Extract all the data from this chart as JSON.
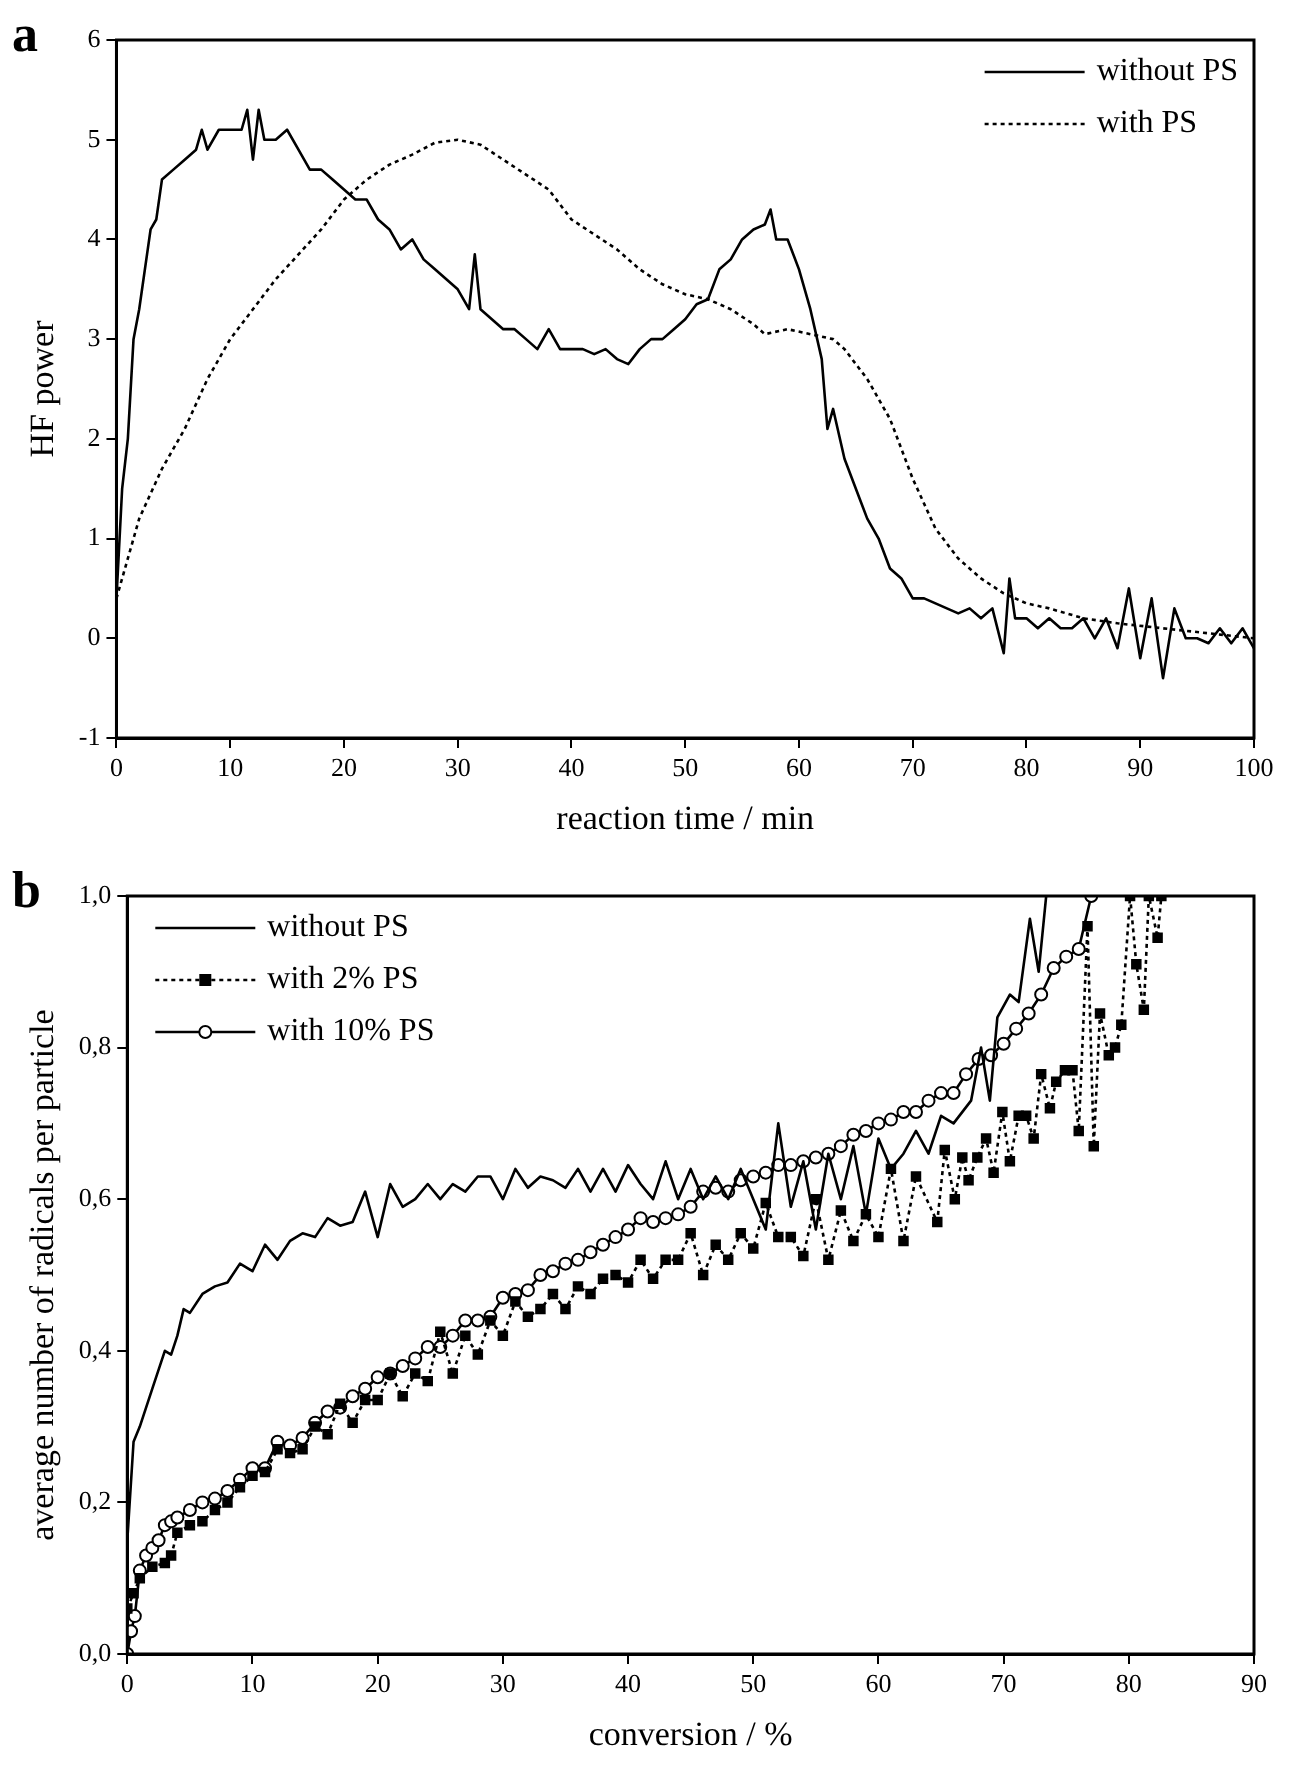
{
  "chart_data": [
    {
      "type": "line",
      "title": "a",
      "xlabel": "reaction time / min",
      "ylabel": "HF power",
      "xlim": [
        0,
        100
      ],
      "xticks": [
        0,
        10,
        20,
        30,
        40,
        50,
        60,
        70,
        80,
        90,
        100
      ],
      "ylim": [
        -1,
        6
      ],
      "yticks": [
        -1,
        0,
        1,
        2,
        3,
        4,
        5,
        6
      ],
      "legend": "top right",
      "marker": "none",
      "series": [
        {
          "name": "without PS",
          "color": "#000000",
          "line_style": "solid",
          "x": [
            0,
            0.5,
            1,
            1.5,
            2,
            3,
            3.5,
            4,
            5,
            6,
            7,
            7.5,
            8,
            9,
            10,
            11,
            11.5,
            12,
            12.5,
            13,
            14,
            15,
            16,
            17,
            18,
            19,
            20,
            21,
            22,
            23,
            24,
            25,
            26,
            27,
            28,
            29,
            30,
            31,
            31.5,
            32,
            33,
            34,
            35,
            36,
            37,
            38,
            39,
            40,
            41,
            42,
            43,
            44,
            45,
            46,
            47,
            48,
            49,
            50,
            51,
            52,
            53,
            54,
            55,
            56,
            57,
            57.5,
            58,
            59,
            60,
            61,
            62,
            62.5,
            63,
            64,
            65,
            66,
            67,
            68,
            69,
            70,
            71,
            72,
            73,
            74,
            75,
            76,
            77,
            78,
            78.5,
            79,
            80,
            81,
            82,
            83,
            84,
            85,
            86,
            87,
            88,
            89,
            90,
            91,
            92,
            93,
            94,
            95,
            96,
            97,
            98,
            99,
            100
          ],
          "values": [
            0.4,
            1.5,
            2.0,
            3.0,
            3.3,
            4.1,
            4.2,
            4.6,
            4.7,
            4.8,
            4.9,
            5.1,
            4.9,
            5.1,
            5.1,
            5.1,
            5.3,
            4.8,
            5.3,
            5.0,
            5.0,
            5.1,
            4.9,
            4.7,
            4.7,
            4.6,
            4.5,
            4.4,
            4.4,
            4.2,
            4.1,
            3.9,
            4.0,
            3.8,
            3.7,
            3.6,
            3.5,
            3.3,
            3.85,
            3.3,
            3.2,
            3.1,
            3.1,
            3.0,
            2.9,
            3.1,
            2.9,
            2.9,
            2.9,
            2.85,
            2.9,
            2.8,
            2.75,
            2.9,
            3.0,
            3.0,
            3.1,
            3.2,
            3.35,
            3.4,
            3.7,
            3.8,
            4.0,
            4.1,
            4.15,
            4.3,
            4.0,
            4.0,
            3.7,
            3.3,
            2.8,
            2.1,
            2.3,
            1.8,
            1.5,
            1.2,
            1.0,
            0.7,
            0.6,
            0.4,
            0.4,
            0.35,
            0.3,
            0.25,
            0.3,
            0.2,
            0.3,
            -0.15,
            0.6,
            0.2,
            0.2,
            0.1,
            0.2,
            0.1,
            0.1,
            0.2,
            0.0,
            0.2,
            -0.1,
            0.5,
            -0.2,
            0.4,
            -0.4,
            0.3,
            0.0,
            0.0,
            -0.05,
            0.1,
            -0.05,
            0.1,
            -0.1
          ]
        },
        {
          "name": "with PS",
          "color": "#000000",
          "line_style": "dotted",
          "x": [
            0,
            2,
            4,
            6,
            8,
            10,
            12,
            14,
            16,
            18,
            20,
            22,
            24,
            26,
            28,
            30,
            32,
            34,
            36,
            38,
            40,
            42,
            44,
            46,
            48,
            50,
            52,
            54,
            56,
            57,
            59,
            61,
            63,
            64,
            66,
            68,
            70,
            72,
            74,
            76,
            78,
            80,
            82,
            85,
            88,
            92,
            96,
            100
          ],
          "values": [
            0.4,
            1.2,
            1.7,
            2.1,
            2.6,
            3.0,
            3.3,
            3.6,
            3.85,
            4.1,
            4.4,
            4.6,
            4.75,
            4.85,
            4.97,
            5.0,
            4.95,
            4.8,
            4.65,
            4.5,
            4.2,
            4.05,
            3.9,
            3.7,
            3.55,
            3.45,
            3.4,
            3.3,
            3.15,
            3.05,
            3.1,
            3.05,
            3.0,
            2.9,
            2.6,
            2.2,
            1.6,
            1.1,
            0.8,
            0.6,
            0.45,
            0.35,
            0.3,
            0.2,
            0.15,
            0.1,
            0.05,
            0.0
          ]
        }
      ]
    },
    {
      "type": "line",
      "title": "b",
      "xlabel": "conversion / %",
      "ylabel": "average number of radicals per particle",
      "xlim": [
        0,
        90
      ],
      "xticks": [
        0,
        10,
        20,
        30,
        40,
        50,
        60,
        70,
        80,
        90
      ],
      "ylim": [
        0,
        1
      ],
      "yticks": [
        {
          "value": 0,
          "label": "0,0"
        },
        {
          "value": 0.2,
          "label": "0,2"
        },
        {
          "value": 0.4,
          "label": "0,4"
        },
        {
          "value": 0.6,
          "label": "0,6"
        },
        {
          "value": 0.8,
          "label": "0,8"
        },
        {
          "value": 1,
          "label": "1,0"
        }
      ],
      "legend": "top left",
      "series": [
        {
          "name": "without PS",
          "color": "#000000",
          "line_style": "solid",
          "marker": "none",
          "x": [
            0,
            0.5,
            1,
            2,
            3,
            3.5,
            4,
            4.5,
            5,
            6,
            7,
            8,
            9,
            10,
            11,
            12,
            13,
            14,
            15,
            16,
            17,
            18,
            19,
            20,
            21,
            22,
            23,
            24,
            25,
            26,
            27,
            28,
            29,
            30,
            31,
            32,
            33,
            34,
            35,
            36,
            37,
            38,
            39,
            40,
            41,
            42,
            43,
            44,
            45,
            46,
            47,
            48,
            49,
            50,
            51,
            52,
            53,
            54,
            55,
            56,
            57,
            58,
            59,
            60,
            61,
            62,
            63,
            64,
            65,
            66,
            67.4,
            68.2,
            68.9,
            69.5,
            70.5,
            71.2,
            72.1,
            72.8,
            73.4
          ],
          "values": [
            0.15,
            0.28,
            0.3,
            0.35,
            0.4,
            0.395,
            0.42,
            0.455,
            0.45,
            0.475,
            0.485,
            0.49,
            0.515,
            0.505,
            0.54,
            0.52,
            0.545,
            0.555,
            0.55,
            0.575,
            0.565,
            0.57,
            0.61,
            0.55,
            0.62,
            0.59,
            0.6,
            0.62,
            0.6,
            0.62,
            0.61,
            0.63,
            0.63,
            0.6,
            0.64,
            0.615,
            0.63,
            0.625,
            0.615,
            0.64,
            0.61,
            0.64,
            0.61,
            0.645,
            0.62,
            0.6,
            0.65,
            0.6,
            0.64,
            0.6,
            0.63,
            0.6,
            0.64,
            0.6,
            0.56,
            0.7,
            0.59,
            0.65,
            0.56,
            0.66,
            0.6,
            0.67,
            0.58,
            0.68,
            0.64,
            0.66,
            0.69,
            0.66,
            0.71,
            0.7,
            0.73,
            0.8,
            0.73,
            0.84,
            0.87,
            0.86,
            0.97,
            0.9,
            1.0
          ]
        },
        {
          "name": "with 2% PS",
          "color": "#000000",
          "line_style": "dotted",
          "marker": "square",
          "x": [
            0,
            0.5,
            1,
            2,
            3,
            3.5,
            4,
            5,
            6,
            7,
            8,
            9,
            10,
            11,
            12,
            13,
            14,
            15,
            16,
            17,
            18,
            19,
            20,
            21,
            22,
            23,
            24,
            25,
            26,
            27,
            28,
            29,
            30,
            31,
            32,
            33,
            34,
            35,
            36,
            37,
            38,
            39,
            40,
            41,
            42,
            43,
            44,
            45,
            46,
            47,
            48,
            49,
            50,
            51,
            52,
            53,
            54,
            55,
            56,
            57,
            58,
            59,
            60,
            61,
            62,
            63,
            64.7,
            65.3,
            66.1,
            66.7,
            67.2,
            67.9,
            68.6,
            69.2,
            69.9,
            70.5,
            71.2,
            71.8,
            72.4,
            73,
            73.7,
            74.2,
            74.9,
            75.5,
            76,
            76.7,
            77.2,
            77.7,
            78.4,
            78.9,
            79.4,
            80.1,
            80.6,
            81.2,
            81.6,
            82.3,
            82.6
          ],
          "values": [
            0.06,
            0.08,
            0.1,
            0.115,
            0.12,
            0.13,
            0.16,
            0.17,
            0.175,
            0.19,
            0.2,
            0.22,
            0.235,
            0.24,
            0.27,
            0.265,
            0.27,
            0.3,
            0.29,
            0.33,
            0.305,
            0.335,
            0.335,
            0.37,
            0.34,
            0.37,
            0.36,
            0.425,
            0.37,
            0.42,
            0.395,
            0.44,
            0.42,
            0.465,
            0.445,
            0.455,
            0.475,
            0.455,
            0.485,
            0.475,
            0.495,
            0.5,
            0.49,
            0.52,
            0.495,
            0.52,
            0.52,
            0.555,
            0.5,
            0.54,
            0.52,
            0.555,
            0.535,
            0.595,
            0.55,
            0.55,
            0.525,
            0.6,
            0.52,
            0.585,
            0.545,
            0.58,
            0.55,
            0.64,
            0.545,
            0.63,
            0.57,
            0.665,
            0.6,
            0.655,
            0.625,
            0.655,
            0.68,
            0.635,
            0.715,
            0.65,
            0.71,
            0.71,
            0.68,
            0.765,
            0.72,
            0.755,
            0.77,
            0.77,
            0.69,
            0.96,
            0.67,
            0.845,
            0.79,
            0.8,
            0.83,
            1.0,
            0.91,
            0.85,
            1.0,
            0.945,
            1.0
          ]
        },
        {
          "name": "with 10% PS",
          "color": "#000000",
          "line_style": "solid",
          "marker": "circle",
          "x": [
            0,
            0.3,
            0.6,
            1,
            1.5,
            2,
            2.5,
            3,
            3.5,
            4,
            5,
            6,
            7,
            8,
            9,
            10,
            11,
            12,
            13,
            14,
            15,
            16,
            17,
            18,
            19,
            20,
            21,
            22,
            23,
            24,
            25,
            26,
            27,
            28,
            29,
            30,
            31,
            32,
            33,
            34,
            35,
            36,
            37,
            38,
            39,
            40,
            41,
            42,
            43,
            44,
            45,
            46,
            47,
            48,
            49,
            50,
            51,
            52,
            53,
            54,
            55,
            56,
            57,
            58,
            59,
            60,
            61,
            62,
            63,
            64,
            65,
            66,
            67,
            68,
            69,
            70,
            71,
            72,
            73,
            74,
            75,
            76,
            77
          ],
          "values": [
            0.0,
            0.03,
            0.05,
            0.11,
            0.13,
            0.14,
            0.15,
            0.17,
            0.175,
            0.18,
            0.19,
            0.2,
            0.205,
            0.215,
            0.23,
            0.245,
            0.245,
            0.28,
            0.275,
            0.285,
            0.305,
            0.32,
            0.325,
            0.34,
            0.35,
            0.365,
            0.37,
            0.38,
            0.39,
            0.405,
            0.405,
            0.42,
            0.44,
            0.44,
            0.445,
            0.47,
            0.475,
            0.48,
            0.5,
            0.505,
            0.515,
            0.52,
            0.53,
            0.54,
            0.55,
            0.56,
            0.575,
            0.57,
            0.575,
            0.58,
            0.59,
            0.61,
            0.615,
            0.61,
            0.625,
            0.63,
            0.635,
            0.645,
            0.645,
            0.65,
            0.655,
            0.66,
            0.67,
            0.685,
            0.69,
            0.7,
            0.705,
            0.715,
            0.715,
            0.73,
            0.74,
            0.74,
            0.765,
            0.785,
            0.79,
            0.805,
            0.825,
            0.845,
            0.87,
            0.905,
            0.92,
            0.93,
            1.0
          ]
        }
      ]
    }
  ]
}
